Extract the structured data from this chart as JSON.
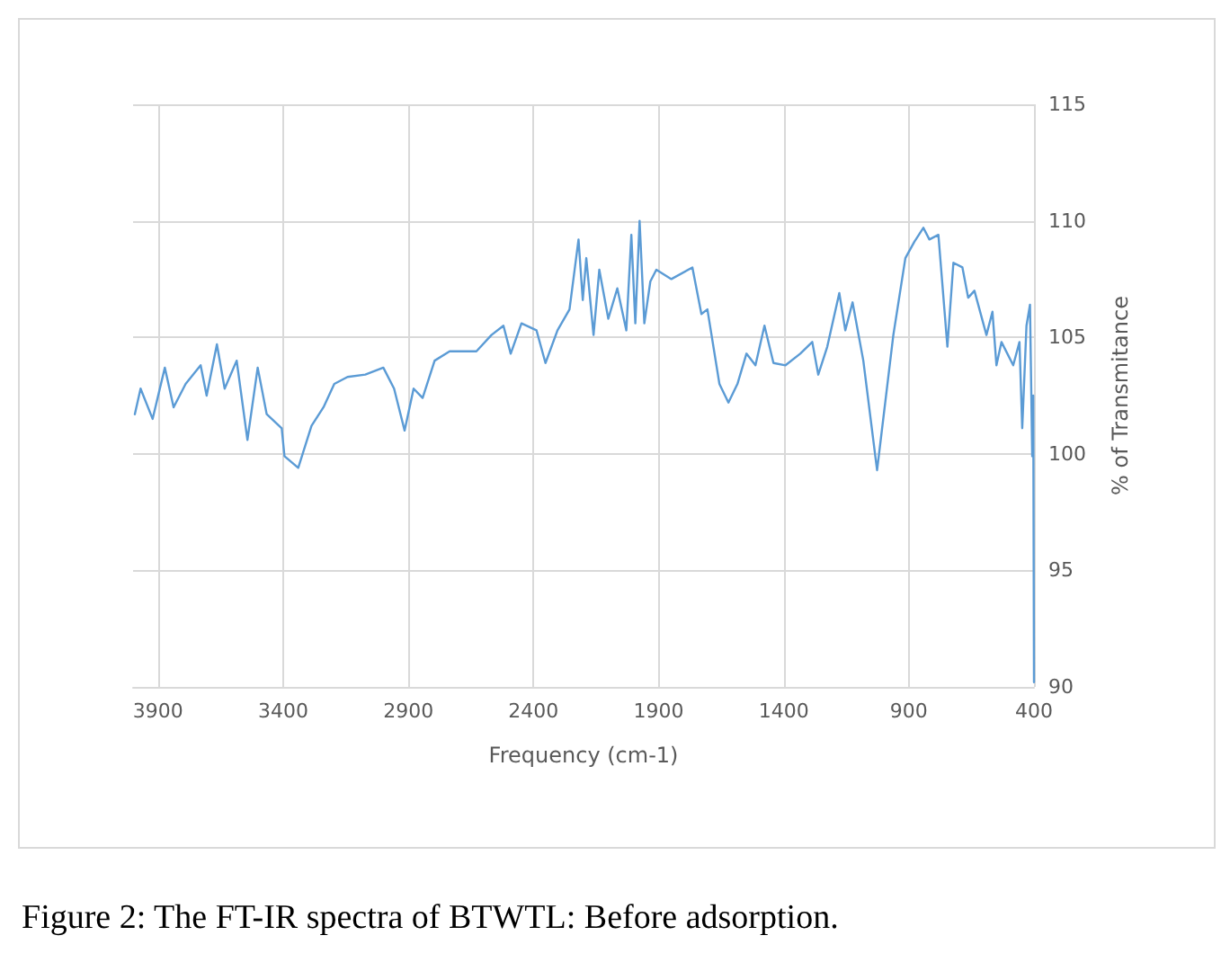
{
  "chart_data": {
    "type": "line",
    "xlabel": "Frequency (cm-1)",
    "ylabel": "% of Transmitance",
    "annotations": [
      "Figure 2: The FT-IR spectra of BTWTL: Before adsorption."
    ],
    "xlim": [
      4000,
      400
    ],
    "xticks": [
      3900,
      3400,
      2900,
      2400,
      1900,
      1400,
      900,
      400
    ],
    "ylim": [
      90,
      115
    ],
    "yticks": [
      90,
      95,
      100,
      105,
      110,
      115
    ],
    "grid": true,
    "marker": "none",
    "line_style": "solid",
    "series": [
      {
        "color": "#5b9bd5",
        "x": [
          3993,
          3970,
          3922,
          3873,
          3838,
          3790,
          3730,
          3706,
          3665,
          3634,
          3586,
          3543,
          3502,
          3466,
          3406,
          3395,
          3340,
          3287,
          3239,
          3196,
          3143,
          3072,
          3000,
          2957,
          2915,
          2879,
          2843,
          2795,
          2735,
          2628,
          2568,
          2520,
          2491,
          2448,
          2388,
          2352,
          2304,
          2256,
          2220,
          2203,
          2189,
          2160,
          2137,
          2101,
          2065,
          2029,
          2009,
          1993,
          1976,
          1957,
          1933,
          1909,
          1849,
          1765,
          1729,
          1705,
          1657,
          1621,
          1585,
          1549,
          1513,
          1477,
          1441,
          1393,
          1334,
          1286,
          1262,
          1226,
          1178,
          1154,
          1125,
          1082,
          1027,
          962,
          914,
          878,
          842,
          818,
          782,
          746,
          722,
          686,
          663,
          638,
          590,
          566,
          550,
          530,
          483,
          458,
          447,
          430,
          416,
          407,
          403,
          400
        ],
        "values": [
          101.7,
          102.8,
          101.5,
          103.7,
          102.0,
          103.0,
          103.8,
          102.5,
          104.7,
          102.8,
          104.0,
          100.6,
          103.7,
          101.7,
          101.1,
          99.9,
          99.4,
          101.2,
          102.0,
          103.0,
          103.3,
          103.4,
          103.7,
          102.8,
          101.0,
          102.8,
          102.4,
          104.0,
          104.4,
          104.4,
          105.1,
          105.5,
          104.3,
          105.6,
          105.3,
          103.9,
          105.3,
          106.2,
          109.2,
          106.6,
          108.4,
          105.1,
          107.9,
          105.8,
          107.1,
          105.3,
          109.4,
          105.6,
          110.0,
          105.6,
          107.4,
          107.9,
          107.5,
          108.0,
          106.0,
          106.2,
          103.0,
          102.2,
          103.0,
          104.3,
          103.8,
          105.5,
          103.9,
          103.8,
          104.3,
          104.8,
          103.4,
          104.6,
          106.9,
          105.3,
          106.5,
          104.0,
          99.3,
          105.1,
          108.4,
          109.1,
          109.7,
          109.2,
          109.4,
          104.6,
          108.2,
          108.0,
          106.7,
          107.0,
          105.1,
          106.1,
          103.8,
          104.8,
          103.8,
          104.8,
          101.1,
          105.5,
          106.4,
          99.9,
          102.5,
          90.2
        ]
      }
    ]
  }
}
